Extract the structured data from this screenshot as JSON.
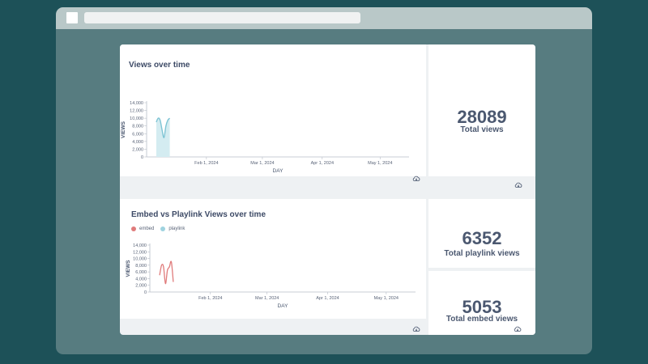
{
  "colors": {
    "background": "#1d5158",
    "browser_frame": "#577c80",
    "browser_bar": "#b9c8c8",
    "views_series": "#7ec4d4",
    "embed_series": "#e07b7b",
    "playlink_series": "#9fd3e0",
    "text_dark": "#4b5870"
  },
  "dashboard": {
    "views_card": {
      "title": "Views over time",
      "download_icon": "cloud-download-icon"
    },
    "total_views": {
      "value": "28089",
      "label": "Total views",
      "download_icon": "cloud-download-icon"
    },
    "embed_playlink_card": {
      "title": "Embed vs Playlink Views over time",
      "legend": [
        "embed",
        "playlink"
      ],
      "download_icon": "cloud-download-icon"
    },
    "total_playlink": {
      "value": "6352",
      "label": "Total playlink views"
    },
    "total_embed": {
      "value": "5053",
      "label": "Total embed views",
      "download_icon": "cloud-download-icon"
    }
  },
  "chart_data": [
    {
      "type": "area",
      "title": "Views over time",
      "xlabel": "DAY",
      "ylabel": "VIEWS",
      "ylim": [
        0,
        14000
      ],
      "y_ticks": [
        "0",
        "2,000",
        "4,000",
        "6,000",
        "8,000",
        "10,000",
        "12,000",
        "14,000"
      ],
      "x_tick_labels": [
        "Feb 1, 2024",
        "Mar 1, 2024",
        "Apr 1, 2024",
        "May 1, 2024"
      ],
      "grid": false,
      "series": [
        {
          "x": [
            "2024-01-06",
            "2024-01-07",
            "2024-01-08",
            "2024-01-09",
            "2024-01-10",
            "2024-01-11",
            "2024-01-12",
            "2024-01-13"
          ],
          "values": [
            9000,
            10000,
            9500,
            7000,
            5000,
            8000,
            9500,
            10000
          ]
        }
      ]
    },
    {
      "type": "line",
      "title": "Embed vs Playlink Views over time",
      "xlabel": "DAY",
      "ylabel": "VIEWS",
      "ylim": [
        0,
        14000
      ],
      "y_ticks": [
        "0",
        "2,000",
        "4,000",
        "6,000",
        "8,000",
        "10,000",
        "12,000",
        "14,000"
      ],
      "x_tick_labels": [
        "Feb 1, 2024",
        "Mar 1, 2024",
        "Apr 1, 2024",
        "May 1, 2024"
      ],
      "legend_position": "top-left",
      "grid": false,
      "series": [
        {
          "name": "embed",
          "x": [
            "2024-01-06",
            "2024-01-07",
            "2024-01-08",
            "2024-01-09",
            "2024-01-10",
            "2024-01-11",
            "2024-01-12",
            "2024-01-13"
          ],
          "values": [
            5000,
            8000,
            7500,
            2500,
            6500,
            7500,
            9000,
            3000
          ]
        },
        {
          "name": "playlink",
          "x": [],
          "values": []
        }
      ]
    }
  ]
}
